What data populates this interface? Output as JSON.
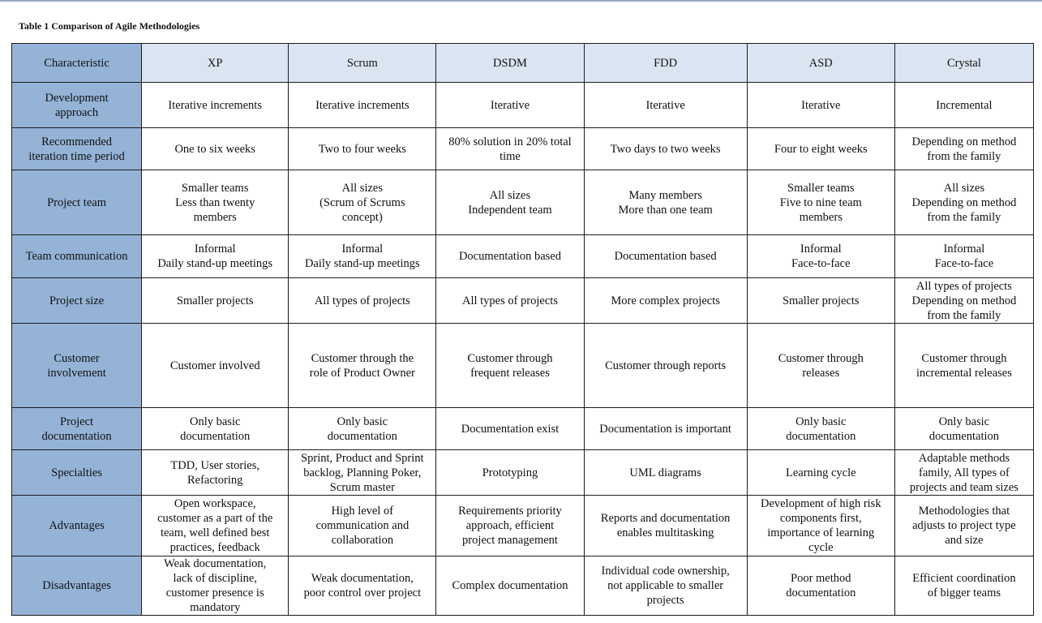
{
  "caption": "Table 1 Comparison of Agile Methodologies",
  "header": {
    "characteristic": "Characteristic",
    "columns": [
      "XP",
      "Scrum",
      "DSDM",
      "FDD",
      "ASD",
      "Crystal"
    ]
  },
  "rows": [
    {
      "label": [
        "Development",
        "approach"
      ],
      "cells": [
        [
          "Iterative increments"
        ],
        [
          "Iterative increments"
        ],
        [
          "Iterative"
        ],
        [
          "Iterative"
        ],
        [
          "Iterative"
        ],
        [
          "Incremental"
        ]
      ]
    },
    {
      "label": [
        "Recommended",
        "iteration time period"
      ],
      "cells": [
        [
          "One to six weeks"
        ],
        [
          "Two to four weeks"
        ],
        [
          "80% solution in 20% total",
          "time"
        ],
        [
          "Two days to two weeks"
        ],
        [
          "Four to eight weeks"
        ],
        [
          "Depending on method",
          "from the family"
        ]
      ]
    },
    {
      "label": [
        "Project team"
      ],
      "cells": [
        [
          "Smaller teams",
          "Less than twenty",
          "members"
        ],
        [
          "All sizes",
          "(Scrum of Scrums",
          "concept)"
        ],
        [
          "All sizes",
          "Independent team"
        ],
        [
          "Many members",
          "More than one team"
        ],
        [
          "Smaller teams",
          "Five to nine team",
          "members"
        ],
        [
          "All sizes",
          "Depending on method",
          "from the family"
        ]
      ]
    },
    {
      "label": [
        "Team communication"
      ],
      "cells": [
        [
          "Informal",
          "Daily stand-up meetings"
        ],
        [
          "Informal",
          "Daily stand-up meetings"
        ],
        [
          "Documentation based"
        ],
        [
          "Documentation based"
        ],
        [
          "Informal",
          "Face-to-face"
        ],
        [
          "Informal",
          "Face-to-face"
        ]
      ]
    },
    {
      "label": [
        "Project size"
      ],
      "cells": [
        [
          "Smaller projects"
        ],
        [
          "All types of projects"
        ],
        [
          "All types of projects"
        ],
        [
          "More complex projects"
        ],
        [
          "Smaller projects"
        ],
        [
          "All types of projects",
          "Depending on method",
          "from the family"
        ]
      ]
    },
    {
      "label": [
        "Customer",
        "involvement"
      ],
      "cells": [
        [
          "Customer involved"
        ],
        [
          "Customer through the",
          "role of Product Owner"
        ],
        [
          "Customer through",
          "frequent releases"
        ],
        [
          "Customer through reports"
        ],
        [
          "Customer through",
          "releases"
        ],
        [
          "Customer through",
          "incremental releases"
        ]
      ]
    },
    {
      "label": [
        "Project",
        "documentation"
      ],
      "cells": [
        [
          "Only basic",
          "documentation"
        ],
        [
          "Only basic",
          "documentation"
        ],
        [
          "Documentation exist"
        ],
        [
          "Documentation is important"
        ],
        [
          "Only basic",
          "documentation"
        ],
        [
          "Only basic",
          "documentation"
        ]
      ]
    },
    {
      "label": [
        "Specialties"
      ],
      "cells": [
        [
          "TDD, User stories,",
          "Refactoring"
        ],
        [
          "Sprint, Product and Sprint",
          "backlog, Planning Poker,",
          "Scrum master"
        ],
        [
          "Prototyping"
        ],
        [
          "UML diagrams"
        ],
        [
          "Learning cycle"
        ],
        [
          "Adaptable methods",
          "family, All types of",
          "projects and team sizes"
        ]
      ]
    },
    {
      "label": [
        "Advantages"
      ],
      "cells": [
        [
          "Open workspace,",
          "customer as a part of the",
          "team, well defined best",
          "practices, feedback"
        ],
        [
          "High level of",
          "communication and",
          "collaboration"
        ],
        [
          "Requirements priority",
          "approach, efficient",
          "project  management"
        ],
        [
          "Reports and documentation",
          "enables multitasking"
        ],
        [
          "Development of high risk",
          "components first,",
          "importance of learning",
          "cycle"
        ],
        [
          "Methodologies that",
          "adjusts to project type",
          "and size"
        ]
      ]
    },
    {
      "label": [
        "Disadvantages"
      ],
      "cells": [
        [
          "Weak documentation,",
          "lack of discipline,",
          "customer presence is",
          "mandatory"
        ],
        [
          "Weak documentation,",
          "poor control over project"
        ],
        [
          "Complex documentation"
        ],
        [
          "Individual code ownership,",
          "not applicable to smaller",
          "projects"
        ],
        [
          "Poor method",
          "documentation"
        ],
        [
          "Efficient coordination",
          "of bigger teams"
        ]
      ]
    }
  ]
}
